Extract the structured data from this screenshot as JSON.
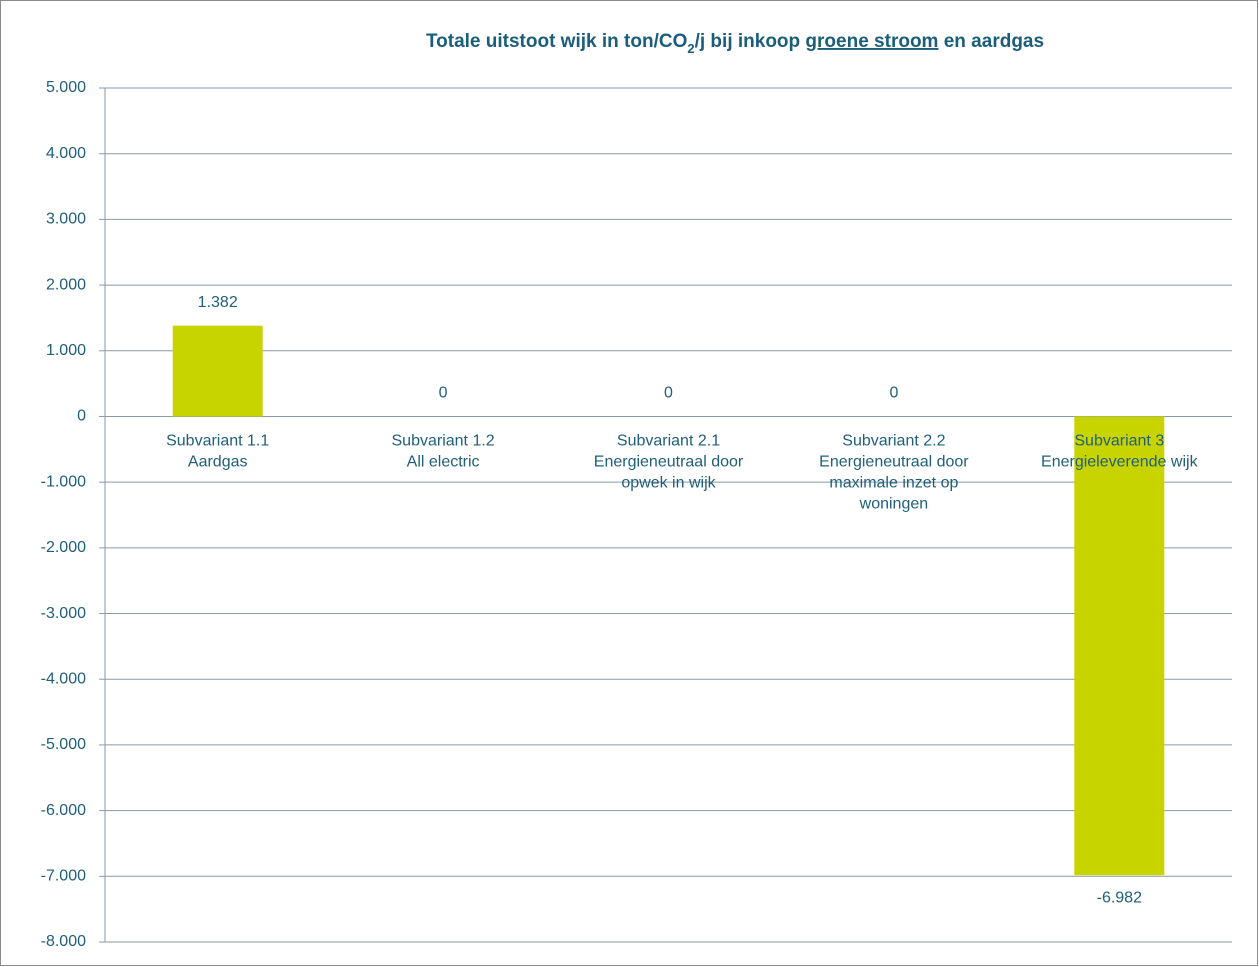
{
  "chart_data": {
    "type": "bar",
    "title_parts": [
      "Totale uitstoot wijk in ton/CO",
      "2",
      "/j bij inkoop ",
      "groene stroom",
      " en aardgas"
    ],
    "categories": [
      [
        "Subvariant 1.1",
        "Aardgas"
      ],
      [
        "Subvariant 1.2",
        "All electric"
      ],
      [
        "Subvariant 2.1",
        "Energieneutraal door",
        "opwek in wijk"
      ],
      [
        "Subvariant 2.2",
        "Energieneutraal door",
        "maximale inzet op",
        "woningen"
      ],
      [
        "Subvariant 3",
        "Energieleverende wijk"
      ]
    ],
    "values": [
      1382,
      0,
      0,
      0,
      -6982
    ],
    "value_labels": [
      "1.382",
      "0",
      "0",
      "0",
      "-6.982"
    ],
    "color": "#c8d400",
    "ylim": [
      -8000,
      5000
    ],
    "yticks": [
      {
        "value": 5000,
        "label": "5.000"
      },
      {
        "value": 4000,
        "label": "4.000"
      },
      {
        "value": 3000,
        "label": "3.000"
      },
      {
        "value": 2000,
        "label": "2.000"
      },
      {
        "value": 1000,
        "label": "1.000"
      },
      0,
      {
        "value": -1000,
        "label": "-1.000"
      },
      {
        "value": -2000,
        "label": "-2.000"
      },
      {
        "value": -3000,
        "label": "-3.000"
      },
      {
        "value": -4000,
        "label": "-4.000"
      },
      {
        "value": -5000,
        "label": "-5.000"
      },
      {
        "value": -6000,
        "label": "-6.000"
      },
      {
        "value": -7000,
        "label": "-7.000"
      },
      {
        "value": -8000,
        "label": "-8.000"
      }
    ],
    "grid": true
  }
}
